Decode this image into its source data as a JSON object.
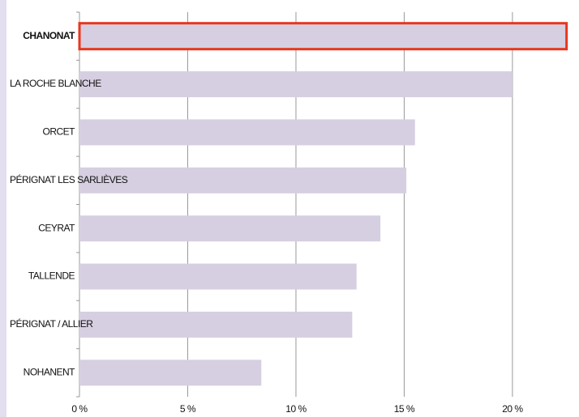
{
  "chart_data": {
    "type": "barh",
    "categories": [
      "CHANONAT",
      "LA ROCHE BLANCHE",
      "ORCET",
      "PÉRIGNAT LES SARLIÈVES",
      "CEYRAT",
      "TALLENDE",
      "PÉRIGNAT / ALLIER",
      "NOHANENT"
    ],
    "values": [
      22.5,
      20.0,
      15.5,
      15.1,
      13.9,
      12.8,
      12.6,
      8.4
    ],
    "color": "#d6cfe1",
    "highlight_index": 0,
    "highlight_color": "#e8361c",
    "xlim": [
      0,
      23
    ],
    "xticks": [
      {
        "value": 0,
        "label": "0 %"
      },
      {
        "value": 5,
        "label": "5 %"
      },
      {
        "value": 10,
        "label": "10 %"
      },
      {
        "value": 15,
        "label": "15 %"
      },
      {
        "value": 20,
        "label": "20 %"
      }
    ],
    "grid": true
  }
}
